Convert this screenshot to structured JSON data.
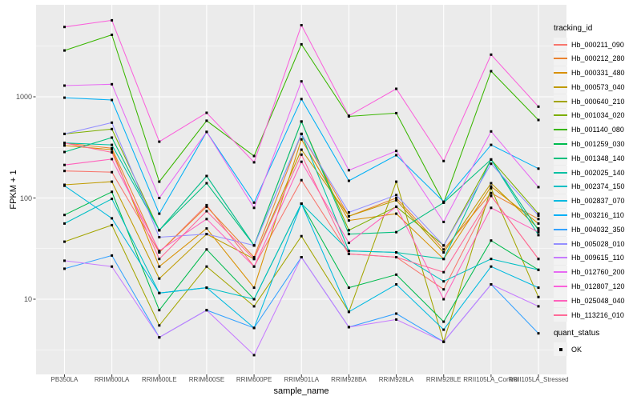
{
  "colors": {
    "panel_bg": "#EBEBEB",
    "grid": "#FFFFFF",
    "legend_key_bg": "#F2F2F2",
    "tick_label": "#4D4D4D",
    "axis_tick": "#333333",
    "point": "#000000"
  },
  "chart_data": {
    "type": "line",
    "title": "",
    "ylabel": "FPKM + 1",
    "xlabel": "sample_name",
    "yscale": "log10",
    "yticks": [
      10,
      100,
      1000
    ],
    "ylim": [
      1.8,
      8000
    ],
    "grid": true,
    "legend_position": "right",
    "legend_title": "tracking_id",
    "point_legend": {
      "title": "quant_status",
      "label": "OK",
      "color": "#000000"
    },
    "categories": [
      "PB350LA",
      "RRIM600LA",
      "RRIM600LE",
      "RRIM600SE",
      "RRIM600PE",
      "RRIM901LA",
      "RRIM928BA",
      "RRIM928LA",
      "RRIM928LE",
      "RRII105LA_Control",
      "RRII105LA_Stressed"
    ],
    "series": [
      {
        "name": "Hb_000211_090",
        "color": "#F8766D",
        "values": [
          185,
          180,
          29,
          85,
          21,
          150,
          28,
          26,
          12.5,
          105,
          25
        ]
      },
      {
        "name": "Hb_000212_280",
        "color": "#EA8331",
        "values": [
          350,
          310,
          29,
          82,
          26,
          430,
          66,
          100,
          31,
          112,
          62
        ]
      },
      {
        "name": "Hb_000331_480",
        "color": "#D89000",
        "values": [
          330,
          300,
          21,
          50,
          13,
          380,
          60,
          70,
          25,
          130,
          56
        ]
      },
      {
        "name": "Hb_000573_040",
        "color": "#C09B00",
        "values": [
          135,
          145,
          16,
          44,
          25,
          300,
          66,
          95,
          29,
          140,
          50
        ]
      },
      {
        "name": "Hb_000640_210",
        "color": "#A3A500",
        "values": [
          37,
          54,
          5.5,
          21,
          8.5,
          42,
          7.5,
          145,
          3.8,
          125,
          10.5
        ]
      },
      {
        "name": "Hb_001034_020",
        "color": "#7CAE00",
        "values": [
          430,
          480,
          48,
          165,
          34,
          570,
          48,
          82,
          34,
          240,
          70
        ]
      },
      {
        "name": "Hb_001140_080",
        "color": "#39B600",
        "values": [
          2870,
          4100,
          145,
          580,
          260,
          3300,
          640,
          690,
          90,
          1790,
          590
        ]
      },
      {
        "name": "Hb_001259_030",
        "color": "#00BB4E",
        "values": [
          68,
          115,
          7.8,
          31,
          10,
          88,
          13,
          17.5,
          6,
          38,
          19.5
        ]
      },
      {
        "name": "Hb_001348_140",
        "color": "#00BF7D",
        "values": [
          285,
          395,
          48,
          140,
          34,
          570,
          44,
          46,
          90,
          240,
          48
        ]
      },
      {
        "name": "Hb_002025_140",
        "color": "#00C1A3",
        "values": [
          350,
          335,
          48,
          165,
          34,
          430,
          30,
          29,
          25,
          240,
          43
        ]
      },
      {
        "name": "Hb_002374_150",
        "color": "#00BFC4",
        "values": [
          56,
          98,
          11.5,
          13,
          10,
          88,
          30,
          29,
          15,
          25,
          19.5
        ]
      },
      {
        "name": "Hb_002837_070",
        "color": "#00BAE0",
        "values": [
          132,
          63,
          11.5,
          13,
          5.2,
          88,
          7.5,
          14,
          5,
          21,
          13
        ]
      },
      {
        "name": "Hb_003216_110",
        "color": "#00B0F6",
        "values": [
          980,
          930,
          70,
          450,
          90,
          950,
          148,
          265,
          92,
          335,
          195
        ]
      },
      {
        "name": "Hb_004032_350",
        "color": "#35A2FF",
        "values": [
          20,
          27,
          4.2,
          7.8,
          5.2,
          26,
          5.3,
          7.2,
          3.8,
          14,
          4.6
        ]
      },
      {
        "name": "Hb_005028_010",
        "color": "#9590FF",
        "values": [
          430,
          555,
          41,
          44,
          34,
          430,
          72,
          107,
          34,
          218,
          67
        ]
      },
      {
        "name": "Hb_009615_110",
        "color": "#C77CFF",
        "values": [
          24,
          21,
          4.2,
          7.8,
          2.8,
          26,
          5.3,
          6.3,
          3.8,
          14,
          8.5
        ]
      },
      {
        "name": "Hb_012760_200",
        "color": "#E76BF3",
        "values": [
          1290,
          1330,
          100,
          450,
          80,
          1420,
          188,
          292,
          58,
          455,
          128
        ]
      },
      {
        "name": "Hb_012807_120",
        "color": "#FA62DB",
        "values": [
          4900,
          5700,
          360,
          695,
          225,
          5100,
          650,
          1200,
          232,
          2610,
          800
        ]
      },
      {
        "name": "Hb_025048_040",
        "color": "#FF62BC",
        "values": [
          212,
          242,
          30,
          62,
          21,
          228,
          36,
          82,
          10,
          80,
          46
        ]
      },
      {
        "name": "Hb_113216_010",
        "color": "#FF6A98",
        "values": [
          350,
          282,
          25,
          74,
          25,
          268,
          28,
          26,
          18.5,
          105,
          25
        ]
      }
    ]
  }
}
